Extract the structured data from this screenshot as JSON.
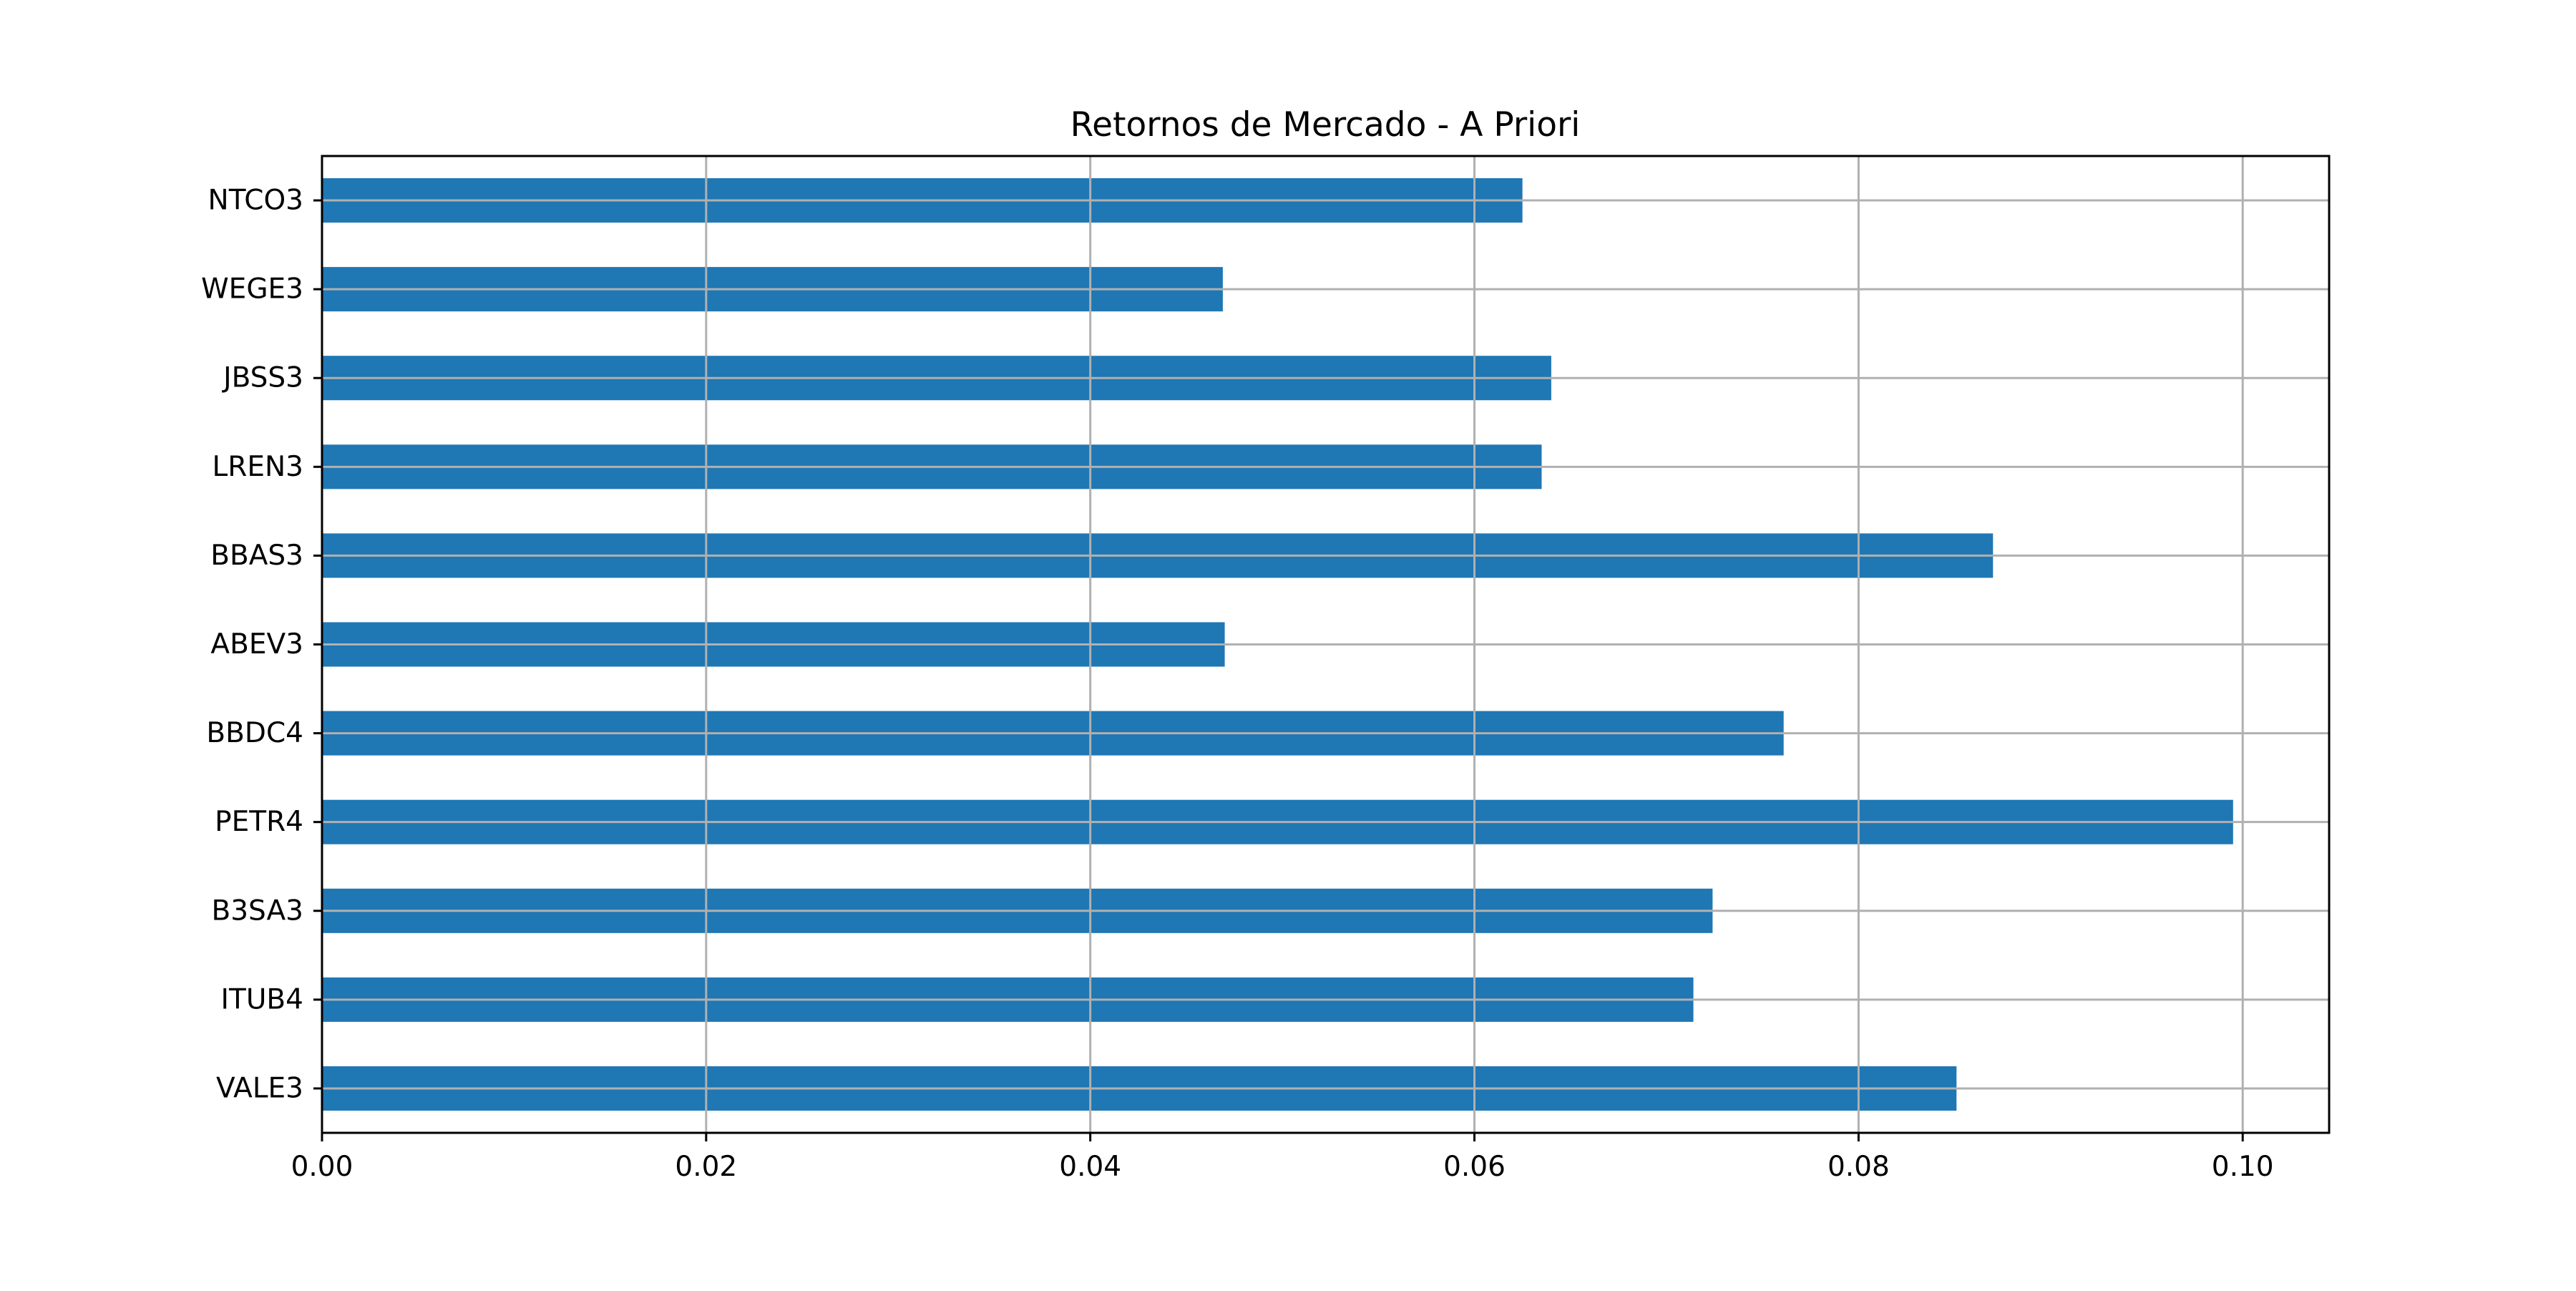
{
  "chart_data": {
    "type": "bar",
    "orientation": "horizontal",
    "title": "Retornos de Mercado - A Priori",
    "xlabel": "",
    "ylabel": "",
    "categories": [
      "VALE3",
      "ITUB4",
      "B3SA3",
      "PETR4",
      "BBDC4",
      "ABEV3",
      "BBAS3",
      "LREN3",
      "JBSS3",
      "WEGE3",
      "NTCO3"
    ],
    "values": [
      0.0851,
      0.0714,
      0.0724,
      0.0995,
      0.0761,
      0.047,
      0.087,
      0.0635,
      0.064,
      0.0469,
      0.0625
    ],
    "xlim": [
      0.0,
      0.1045
    ],
    "xticks": [
      0.0,
      0.02,
      0.04,
      0.06,
      0.08,
      0.1
    ],
    "xtick_labels": [
      "0.00",
      "0.02",
      "0.04",
      "0.06",
      "0.08",
      "0.10"
    ],
    "grid": true,
    "bar_color": "#1f77b4",
    "grid_color": "#b0b0b0"
  }
}
